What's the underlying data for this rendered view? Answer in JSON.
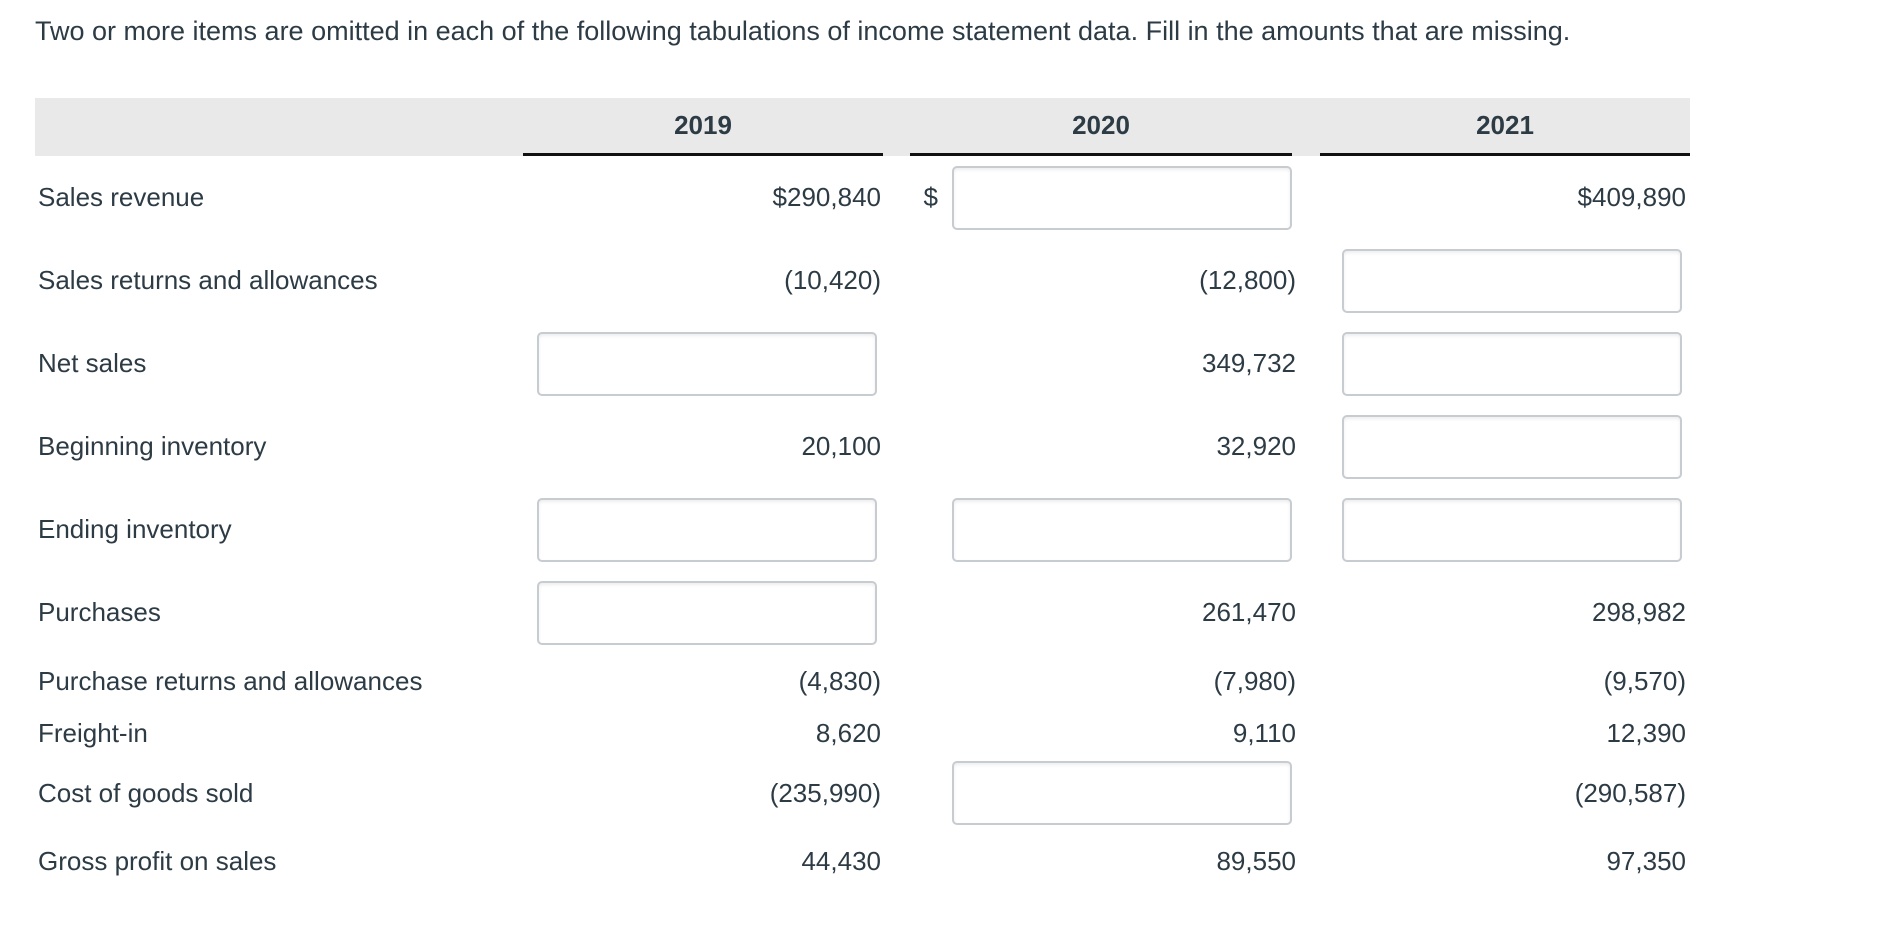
{
  "question": "Two or more items are omitted in each of the following tabulations of income statement data. Fill in the amounts that are missing.",
  "colors": {
    "text": "#2d3b45",
    "header_band": "#e9e9e9",
    "header_underline": "#111111",
    "input_border": "#c7ccd1",
    "background": "#ffffff"
  },
  "table": {
    "years": [
      "2019",
      "2020",
      "2021"
    ],
    "rows": [
      {
        "label": "Sales revenue",
        "cells": [
          {
            "text": "$290,840"
          },
          {
            "input": true,
            "prefix": "$",
            "value": ""
          },
          {
            "text": "$409,890"
          }
        ]
      },
      {
        "label": "Sales returns and allowances",
        "cells": [
          {
            "text": "(10,420)"
          },
          {
            "text": "(12,800)"
          },
          {
            "input": true,
            "value": ""
          }
        ]
      },
      {
        "label": "Net sales",
        "cells": [
          {
            "input": true,
            "value": ""
          },
          {
            "text": "349,732"
          },
          {
            "input": true,
            "value": ""
          }
        ]
      },
      {
        "label": "Beginning inventory",
        "cells": [
          {
            "text": "20,100"
          },
          {
            "text": "32,920"
          },
          {
            "input": true,
            "value": ""
          }
        ]
      },
      {
        "label": "Ending inventory",
        "cells": [
          {
            "input": true,
            "value": ""
          },
          {
            "input": true,
            "value": ""
          },
          {
            "input": true,
            "value": ""
          }
        ]
      },
      {
        "label": "Purchases",
        "cells": [
          {
            "input": true,
            "value": ""
          },
          {
            "text": "261,470"
          },
          {
            "text": "298,982"
          }
        ]
      },
      {
        "label": "Purchase returns and allowances",
        "cells": [
          {
            "text": "(4,830)"
          },
          {
            "text": "(7,980)"
          },
          {
            "text": "(9,570)"
          }
        ]
      },
      {
        "label": "Freight-in",
        "cells": [
          {
            "text": "8,620"
          },
          {
            "text": "9,110"
          },
          {
            "text": "12,390"
          }
        ]
      },
      {
        "label": "Cost of goods sold",
        "cells": [
          {
            "text": "(235,990)"
          },
          {
            "input": true,
            "value": ""
          },
          {
            "text": "(290,587)"
          }
        ]
      },
      {
        "label": "Gross profit on sales",
        "cells": [
          {
            "text": "44,430"
          },
          {
            "text": "89,550"
          },
          {
            "text": "97,350"
          }
        ]
      }
    ]
  }
}
